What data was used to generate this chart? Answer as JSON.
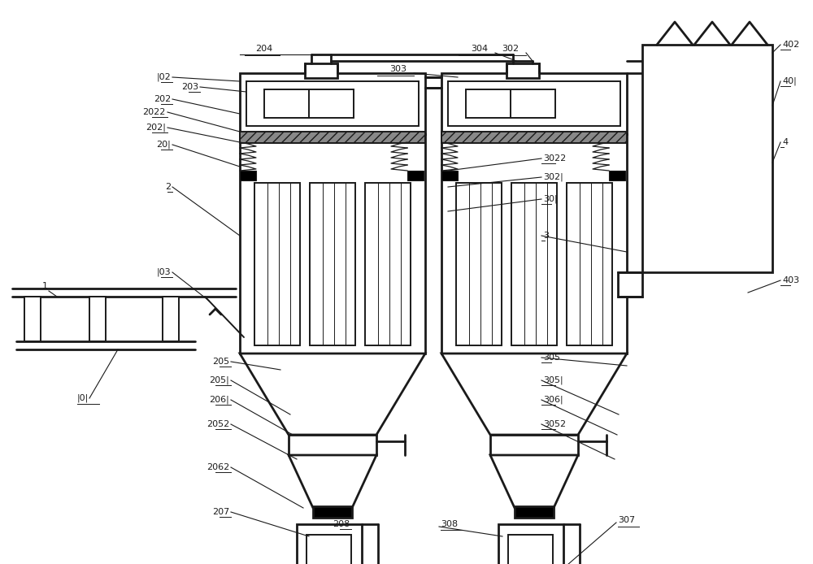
{
  "bg_color": "#ffffff",
  "lc": "#1a1a1a",
  "lw": 1.4,
  "lw2": 2.0,
  "lw3": 2.5,
  "figsize": [
    10.0,
    6.94
  ],
  "dpi": 100
}
